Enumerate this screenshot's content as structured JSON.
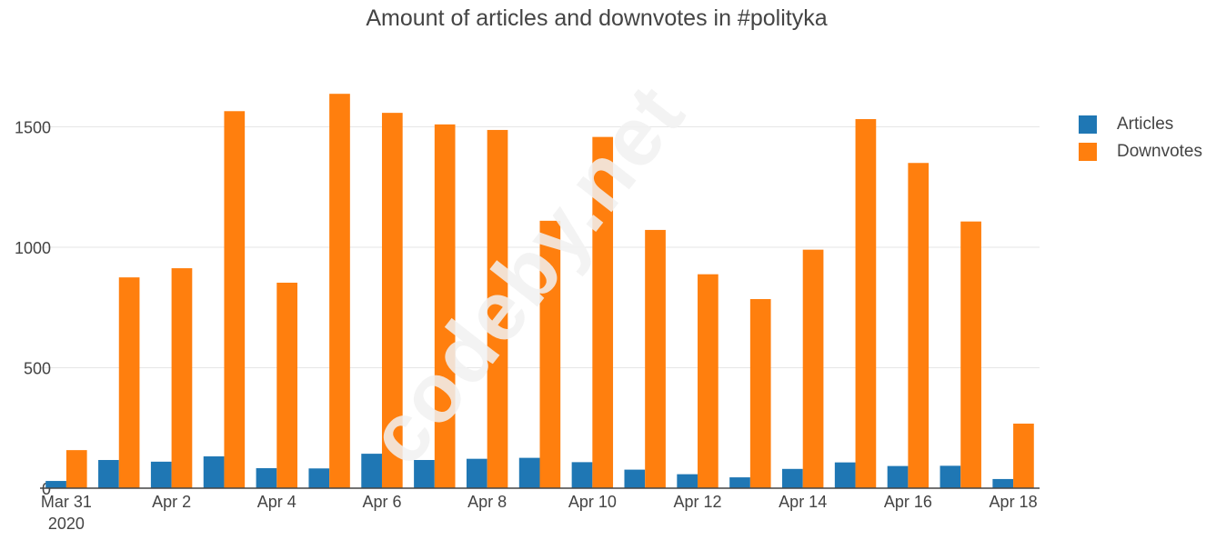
{
  "chart_data": {
    "type": "bar",
    "title": "Amount of articles and downvotes in #polityka",
    "categories": [
      "Mar 31",
      "Apr 1",
      "Apr 2",
      "Apr 3",
      "Apr 4",
      "Apr 5",
      "Apr 6",
      "Apr 7",
      "Apr 8",
      "Apr 9",
      "Apr 10",
      "Apr 11",
      "Apr 12",
      "Apr 13",
      "Apr 14",
      "Apr 15",
      "Apr 16",
      "Apr 17",
      "Apr 18"
    ],
    "x_tick_labels": [
      {
        "index": 0,
        "label": "Mar 31",
        "sublabel": "2020"
      },
      {
        "index": 2,
        "label": "Apr 2"
      },
      {
        "index": 4,
        "label": "Apr 4"
      },
      {
        "index": 6,
        "label": "Apr 6"
      },
      {
        "index": 8,
        "label": "Apr 8"
      },
      {
        "index": 10,
        "label": "Apr 10"
      },
      {
        "index": 12,
        "label": "Apr 12"
      },
      {
        "index": 14,
        "label": "Apr 14"
      },
      {
        "index": 16,
        "label": "Apr 16"
      },
      {
        "index": 18,
        "label": "Apr 18"
      }
    ],
    "series": [
      {
        "name": "Articles",
        "color": "#1f77b4",
        "values": [
          30,
          117,
          110,
          132,
          83,
          82,
          143,
          117,
          122,
          126,
          108,
          77,
          58,
          45,
          80,
          107,
          92,
          93,
          38
        ]
      },
      {
        "name": "Downvotes",
        "color": "#ff7f0e",
        "values": [
          158,
          875,
          913,
          1565,
          853,
          1637,
          1558,
          1510,
          1487,
          1110,
          1458,
          1072,
          888,
          785,
          990,
          1532,
          1350,
          1107,
          268
        ]
      }
    ],
    "y_ticks": [
      0,
      500,
      1000,
      1500
    ],
    "ylim": [
      0,
      1800
    ],
    "xlabel": "",
    "ylabel": "",
    "grid": true,
    "legend_position": "top-right"
  },
  "watermark": "codeby.net"
}
